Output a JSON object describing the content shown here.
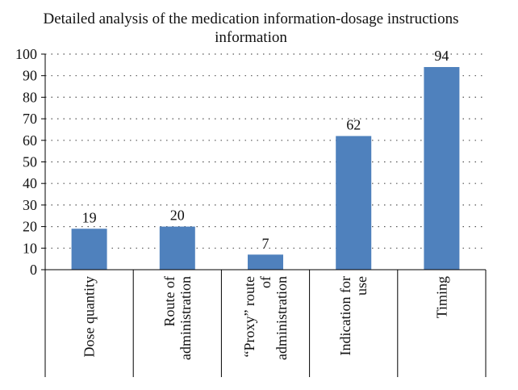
{
  "chart_data": {
    "type": "bar",
    "title_lines": [
      "Detailed analysis of the medication information-dosage instructions",
      "information"
    ],
    "categories": [
      [
        "Dose quantity"
      ],
      [
        "Route of",
        "administration"
      ],
      [
        "“Proxy” route",
        "of",
        "administration"
      ],
      [
        "Indication for",
        "use"
      ],
      [
        "Timing"
      ]
    ],
    "values": [
      19,
      20,
      7,
      62,
      94
    ],
    "ylim": [
      0,
      100
    ],
    "yticks": [
      0,
      10,
      20,
      30,
      40,
      50,
      60,
      70,
      80,
      90,
      100
    ],
    "xlabel": "",
    "ylabel": "",
    "grid": "horizontal-dotted",
    "bar_color": "#4f81bd"
  }
}
